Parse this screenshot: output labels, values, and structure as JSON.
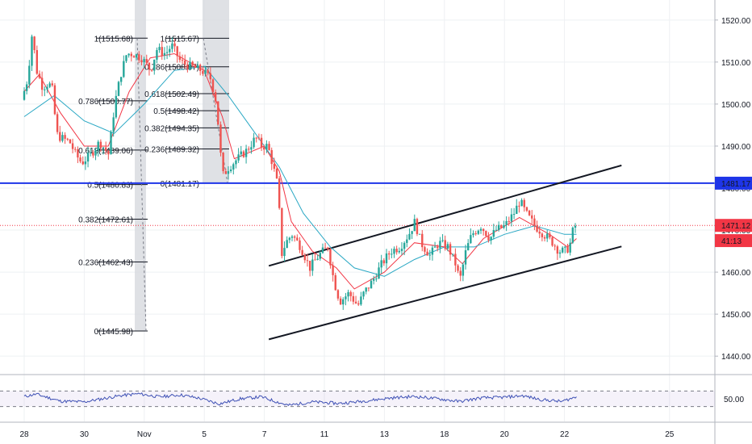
{
  "chart_data": {
    "type": "candlestick",
    "price_axis": {
      "ticks": [
        1440,
        1450,
        1460,
        1470,
        1480,
        1490,
        1500,
        1510,
        1520
      ],
      "tick_labels": [
        "1440.00",
        "1450.00",
        "1460.00",
        "1470.00",
        "1480.00",
        "1490.00",
        "1500.00",
        "1510.00",
        "1520.00"
      ],
      "range": [
        1436,
        1524
      ]
    },
    "time_axis": {
      "ticks": [
        {
          "label": "28",
          "day": 0
        },
        {
          "label": "30",
          "day": 2
        },
        {
          "label": "Nov",
          "day": 4
        },
        {
          "label": "5",
          "day": 6
        },
        {
          "label": "7",
          "day": 8
        },
        {
          "label": "11",
          "day": 10
        },
        {
          "label": "13",
          "day": 12
        },
        {
          "label": "18",
          "day": 14
        },
        {
          "label": "20",
          "day": 16
        },
        {
          "label": "22",
          "day": 18
        },
        {
          "label": "25",
          "day": 21.5
        }
      ]
    },
    "price_badges": [
      {
        "label": "1481.17",
        "value": 1481.17,
        "color": "#1e35e8"
      },
      {
        "label": "1471.12",
        "value": 1471.12,
        "color": "#f23645"
      },
      {
        "label": "41:13",
        "value": 1467.5,
        "color": "#f23645"
      }
    ],
    "horizontal_line": {
      "value": 1481.17,
      "color": "#1e35e8"
    },
    "last_price_line": {
      "value": 1471.12,
      "color": "#f23645"
    },
    "fib_left": [
      {
        "label": "1(1515.68)",
        "value": 1515.68
      },
      {
        "label": "0.786(1500.77)",
        "value": 1500.77
      },
      {
        "label": "0.618(1489.06)",
        "value": 1489.06
      },
      {
        "label": "0.5(1480.83)",
        "value": 1480.83
      },
      {
        "label": "0.382(1472.61)",
        "value": 1472.61
      },
      {
        "label": "0.236(1462.43)",
        "value": 1462.43
      },
      {
        "label": "0(1445.98)",
        "value": 1445.98
      }
    ],
    "fib_right": [
      {
        "label": "1(1515.67)",
        "value": 1515.67
      },
      {
        "label": "0.786(1508.87)",
        "value": 1508.87
      },
      {
        "label": "0.618(1502.49)",
        "value": 1502.49
      },
      {
        "label": "0.5(1498.42)",
        "value": 1498.42
      },
      {
        "label": "0.382(1494.35)",
        "value": 1494.35
      },
      {
        "label": "0.236(1489.32)",
        "value": 1489.32
      },
      {
        "label": "0(1481.17)",
        "value": 1481.17
      }
    ],
    "channel": {
      "upper": [
        {
          "day": 8.15,
          "price": 1461.5
        },
        {
          "day": 19.9,
          "price": 1485.4
        }
      ],
      "lower": [
        {
          "day": 8.15,
          "price": 1444.0
        },
        {
          "day": 19.9,
          "price": 1466.1
        }
      ]
    },
    "price_path": [
      {
        "day": 0.0,
        "price": 1501
      },
      {
        "day": 0.2,
        "price": 1506
      },
      {
        "day": 0.35,
        "price": 1517
      },
      {
        "day": 0.5,
        "price": 1508
      },
      {
        "day": 0.7,
        "price": 1504
      },
      {
        "day": 0.9,
        "price": 1505
      },
      {
        "day": 1.05,
        "price": 1503
      },
      {
        "day": 1.15,
        "price": 1493
      },
      {
        "day": 1.3,
        "price": 1492
      },
      {
        "day": 1.6,
        "price": 1491
      },
      {
        "day": 1.8,
        "price": 1488
      },
      {
        "day": 2.0,
        "price": 1486
      },
      {
        "day": 2.3,
        "price": 1488
      },
      {
        "day": 2.6,
        "price": 1491
      },
      {
        "day": 2.9,
        "price": 1488
      },
      {
        "day": 3.1,
        "price": 1500
      },
      {
        "day": 3.3,
        "price": 1507
      },
      {
        "day": 3.5,
        "price": 1512
      },
      {
        "day": 3.7,
        "price": 1512
      },
      {
        "day": 4.0,
        "price": 1511
      },
      {
        "day": 4.3,
        "price": 1508
      },
      {
        "day": 4.5,
        "price": 1513
      },
      {
        "day": 4.8,
        "price": 1512
      },
      {
        "day": 5.0,
        "price": 1514
      },
      {
        "day": 5.3,
        "price": 1510
      },
      {
        "day": 5.6,
        "price": 1509
      },
      {
        "day": 6.0,
        "price": 1508
      },
      {
        "day": 6.3,
        "price": 1506
      },
      {
        "day": 6.5,
        "price": 1500
      },
      {
        "day": 6.6,
        "price": 1490
      },
      {
        "day": 6.7,
        "price": 1483
      },
      {
        "day": 6.9,
        "price": 1485
      },
      {
        "day": 7.2,
        "price": 1487
      },
      {
        "day": 7.5,
        "price": 1489
      },
      {
        "day": 7.8,
        "price": 1492
      },
      {
        "day": 8.0,
        "price": 1490
      },
      {
        "day": 8.2,
        "price": 1490
      },
      {
        "day": 8.35,
        "price": 1486
      },
      {
        "day": 8.55,
        "price": 1480
      },
      {
        "day": 8.65,
        "price": 1464
      },
      {
        "day": 8.8,
        "price": 1467
      },
      {
        "day": 9.0,
        "price": 1469
      },
      {
        "day": 9.3,
        "price": 1466
      },
      {
        "day": 9.6,
        "price": 1461
      },
      {
        "day": 9.9,
        "price": 1464
      },
      {
        "day": 10.2,
        "price": 1466
      },
      {
        "day": 10.4,
        "price": 1458
      },
      {
        "day": 10.6,
        "price": 1453
      },
      {
        "day": 10.9,
        "price": 1455
      },
      {
        "day": 11.2,
        "price": 1452
      },
      {
        "day": 11.4,
        "price": 1455
      },
      {
        "day": 11.7,
        "price": 1458
      },
      {
        "day": 12.0,
        "price": 1462
      },
      {
        "day": 12.3,
        "price": 1465
      },
      {
        "day": 12.6,
        "price": 1466
      },
      {
        "day": 12.9,
        "price": 1469
      },
      {
        "day": 13.1,
        "price": 1472
      },
      {
        "day": 13.3,
        "price": 1467
      },
      {
        "day": 13.6,
        "price": 1464
      },
      {
        "day": 13.9,
        "price": 1467
      },
      {
        "day": 14.2,
        "price": 1466
      },
      {
        "day": 14.45,
        "price": 1462
      },
      {
        "day": 14.6,
        "price": 1458
      },
      {
        "day": 14.8,
        "price": 1465
      },
      {
        "day": 15.0,
        "price": 1469
      },
      {
        "day": 15.3,
        "price": 1471
      },
      {
        "day": 15.6,
        "price": 1468
      },
      {
        "day": 15.8,
        "price": 1470
      },
      {
        "day": 16.1,
        "price": 1471
      },
      {
        "day": 16.4,
        "price": 1474
      },
      {
        "day": 16.6,
        "price": 1477
      },
      {
        "day": 16.8,
        "price": 1474
      },
      {
        "day": 17.1,
        "price": 1471
      },
      {
        "day": 17.4,
        "price": 1469
      },
      {
        "day": 17.7,
        "price": 1467
      },
      {
        "day": 17.9,
        "price": 1465
      },
      {
        "day": 18.1,
        "price": 1465
      },
      {
        "day": 18.25,
        "price": 1466
      },
      {
        "day": 18.4,
        "price": 1471
      }
    ],
    "moving_averages": [
      {
        "color": "#f23645",
        "points": [
          {
            "day": 0.0,
            "price": 1503
          },
          {
            "day": 0.5,
            "price": 1507
          },
          {
            "day": 1.2,
            "price": 1498
          },
          {
            "day": 2.0,
            "price": 1490
          },
          {
            "day": 2.8,
            "price": 1490
          },
          {
            "day": 3.5,
            "price": 1503
          },
          {
            "day": 4.2,
            "price": 1511
          },
          {
            "day": 5.0,
            "price": 1512
          },
          {
            "day": 6.0,
            "price": 1508
          },
          {
            "day": 6.6,
            "price": 1497
          },
          {
            "day": 7.0,
            "price": 1487
          },
          {
            "day": 8.0,
            "price": 1490
          },
          {
            "day": 8.5,
            "price": 1484
          },
          {
            "day": 8.9,
            "price": 1472
          },
          {
            "day": 9.6,
            "price": 1465
          },
          {
            "day": 10.4,
            "price": 1461
          },
          {
            "day": 11.0,
            "price": 1456
          },
          {
            "day": 12.0,
            "price": 1460
          },
          {
            "day": 13.0,
            "price": 1467
          },
          {
            "day": 14.0,
            "price": 1466
          },
          {
            "day": 14.6,
            "price": 1462
          },
          {
            "day": 15.3,
            "price": 1468
          },
          {
            "day": 16.5,
            "price": 1473
          },
          {
            "day": 17.5,
            "price": 1469
          },
          {
            "day": 18.1,
            "price": 1466
          },
          {
            "day": 18.4,
            "price": 1468
          }
        ]
      },
      {
        "color": "#2aa8c4",
        "points": [
          {
            "day": 0.0,
            "price": 1497
          },
          {
            "day": 1.0,
            "price": 1502
          },
          {
            "day": 2.0,
            "price": 1496
          },
          {
            "day": 3.0,
            "price": 1493
          },
          {
            "day": 4.0,
            "price": 1500
          },
          {
            "day": 5.0,
            "price": 1508
          },
          {
            "day": 6.0,
            "price": 1509
          },
          {
            "day": 6.8,
            "price": 1502
          },
          {
            "day": 7.6,
            "price": 1494
          },
          {
            "day": 8.5,
            "price": 1485
          },
          {
            "day": 9.3,
            "price": 1474
          },
          {
            "day": 10.2,
            "price": 1466
          },
          {
            "day": 11.0,
            "price": 1461
          },
          {
            "day": 12.0,
            "price": 1459
          },
          {
            "day": 13.0,
            "price": 1463
          },
          {
            "day": 14.0,
            "price": 1466
          },
          {
            "day": 15.0,
            "price": 1466
          },
          {
            "day": 16.0,
            "price": 1469
          },
          {
            "day": 17.0,
            "price": 1471
          },
          {
            "day": 18.0,
            "price": 1469
          },
          {
            "day": 18.4,
            "price": 1469
          }
        ]
      }
    ],
    "rsi": {
      "tick_label": "50.00",
      "levels": [
        30,
        50,
        70
      ],
      "values": [
        {
          "day": 0.0,
          "v": 56
        },
        {
          "day": 0.4,
          "v": 62
        },
        {
          "day": 1.2,
          "v": 44
        },
        {
          "day": 2.0,
          "v": 42
        },
        {
          "day": 2.6,
          "v": 50
        },
        {
          "day": 3.2,
          "v": 58
        },
        {
          "day": 3.8,
          "v": 63
        },
        {
          "day": 4.5,
          "v": 55
        },
        {
          "day": 5.2,
          "v": 60
        },
        {
          "day": 5.8,
          "v": 52
        },
        {
          "day": 6.5,
          "v": 37
        },
        {
          "day": 7.2,
          "v": 50
        },
        {
          "day": 7.9,
          "v": 55
        },
        {
          "day": 8.5,
          "v": 40
        },
        {
          "day": 8.8,
          "v": 33
        },
        {
          "day": 9.6,
          "v": 42
        },
        {
          "day": 10.5,
          "v": 38
        },
        {
          "day": 11.3,
          "v": 44
        },
        {
          "day": 12.2,
          "v": 52
        },
        {
          "day": 13.0,
          "v": 56
        },
        {
          "day": 13.8,
          "v": 50
        },
        {
          "day": 14.5,
          "v": 43
        },
        {
          "day": 15.2,
          "v": 52
        },
        {
          "day": 16.0,
          "v": 54
        },
        {
          "day": 16.6,
          "v": 58
        },
        {
          "day": 17.2,
          "v": 48
        },
        {
          "day": 17.9,
          "v": 43
        },
        {
          "day": 18.4,
          "v": 55
        }
      ]
    }
  }
}
